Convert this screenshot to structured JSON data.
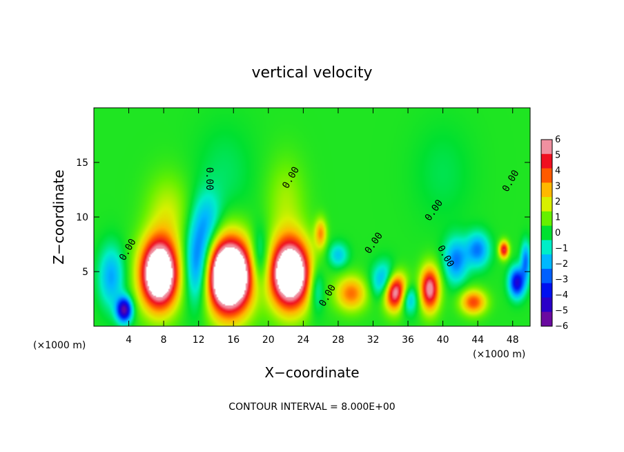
{
  "chart_data": {
    "type": "heatmap",
    "title": "vertical velocity",
    "xlabel": "X−coordinate",
    "ylabel": "Z−coordinate",
    "x_unit_label": "(×1000 m)",
    "footer": "CONTOUR INTERVAL = 8.000E+00",
    "xlim": [
      0,
      50
    ],
    "ylim": [
      0,
      20
    ],
    "x_ticks": [
      4,
      8,
      12,
      16,
      20,
      24,
      28,
      32,
      36,
      40,
      44,
      48
    ],
    "y_ticks": [
      5,
      10,
      15
    ],
    "x_tick_labels": [
      "4",
      "8",
      "12",
      "16",
      "20",
      "24",
      "28",
      "32",
      "36",
      "40",
      "44",
      "48"
    ],
    "y_tick_labels": [
      "5",
      "10",
      "15"
    ],
    "background_value": 0.3,
    "color_scale": {
      "min": -6,
      "max": 6,
      "levels": [
        -6,
        -5,
        -4,
        -3,
        -2,
        -1,
        0,
        1,
        2,
        3,
        4,
        5,
        6
      ],
      "level_labels": [
        "−6",
        "−5",
        "−4",
        "−3",
        "−2",
        "−1",
        "0",
        "1",
        "2",
        "3",
        "4",
        "5",
        "6"
      ],
      "colors": [
        "#6a0aa0",
        "#2a00c8",
        "#0010f0",
        "#0060ff",
        "#00b8ff",
        "#00eec8",
        "#00e030",
        "#66f000",
        "#d8f000",
        "#ffb800",
        "#ff5a00",
        "#f01020",
        "#f090a0"
      ]
    },
    "features": [
      {
        "x": 7.5,
        "z": 4.8,
        "sx": 1.9,
        "sz": 2.8,
        "v": 10
      },
      {
        "x": 15.5,
        "z": 4.6,
        "sx": 2.3,
        "sz": 3.0,
        "v": 12
      },
      {
        "x": 22.5,
        "z": 4.8,
        "sx": 2.0,
        "sz": 2.8,
        "v": 10
      },
      {
        "x": 34.5,
        "z": 3.2,
        "sx": 1.2,
        "sz": 1.5,
        "v": 8
      },
      {
        "x": 38.5,
        "z": 3.4,
        "sx": 1.0,
        "sz": 1.8,
        "v": 6
      },
      {
        "x": 29.5,
        "z": 3.0,
        "sx": 1.6,
        "sz": 1.4,
        "v": 3.5
      },
      {
        "x": 43.5,
        "z": 2.2,
        "sx": 1.3,
        "sz": 1.0,
        "v": 4
      },
      {
        "x": 26.0,
        "z": 8.5,
        "sx": 0.6,
        "sz": 1.2,
        "v": 3
      },
      {
        "x": 8.5,
        "z": 10.5,
        "sx": 2.2,
        "sz": 3.0,
        "v": 1.5
      },
      {
        "x": 22.0,
        "z": 11.5,
        "sx": 2.0,
        "sz": 3.5,
        "v": 1.2
      },
      {
        "x": 47.0,
        "z": 7.0,
        "sx": 0.5,
        "sz": 0.7,
        "v": 5
      },
      {
        "x": 3.5,
        "z": 1.5,
        "sx": 0.8,
        "sz": 1.0,
        "v": -6
      },
      {
        "x": 2.0,
        "z": 4.5,
        "sx": 1.3,
        "sz": 2.5,
        "v": -2.5
      },
      {
        "x": 12.0,
        "z": 5.5,
        "sx": 1.4,
        "sz": 3.2,
        "v": -4
      },
      {
        "x": 13.0,
        "z": 9.5,
        "sx": 1.5,
        "sz": 2.5,
        "v": -2
      },
      {
        "x": 19.0,
        "z": 6.0,
        "sx": 1.0,
        "sz": 2.5,
        "v": -2.5
      },
      {
        "x": 25.5,
        "z": 3.5,
        "sx": 0.8,
        "sz": 2.0,
        "v": -2
      },
      {
        "x": 33.5,
        "z": 4.0,
        "sx": 1.3,
        "sz": 1.5,
        "v": -4
      },
      {
        "x": 36.0,
        "z": 2.5,
        "sx": 1.0,
        "sz": 1.2,
        "v": -3
      },
      {
        "x": 41.5,
        "z": 6.0,
        "sx": 1.2,
        "sz": 1.8,
        "v": -3
      },
      {
        "x": 44.0,
        "z": 7.0,
        "sx": 1.2,
        "sz": 1.4,
        "v": -3
      },
      {
        "x": 48.5,
        "z": 4.0,
        "sx": 0.8,
        "sz": 1.2,
        "v": -5
      },
      {
        "x": 49.5,
        "z": 6.0,
        "sx": 0.5,
        "sz": 1.5,
        "v": -3
      },
      {
        "x": 28.0,
        "z": 6.5,
        "sx": 1.0,
        "sz": 1.0,
        "v": -2
      },
      {
        "x": 15.0,
        "z": 14.0,
        "sx": 3.0,
        "sz": 4.0,
        "v": -0.6
      },
      {
        "x": 40.0,
        "z": 14.0,
        "sx": 3.0,
        "sz": 4.0,
        "v": -0.5
      }
    ],
    "contour_labels": [
      {
        "text": "0.00",
        "x": 3.9,
        "z": 7.0,
        "angle": -60
      },
      {
        "text": "0.00",
        "x": 13.2,
        "z": 13.5,
        "angle": 90
      },
      {
        "text": "0.00",
        "x": 22.6,
        "z": 13.6,
        "angle": -60
      },
      {
        "text": "0.00",
        "x": 26.8,
        "z": 2.8,
        "angle": -60
      },
      {
        "text": "0.00",
        "x": 32.1,
        "z": 7.6,
        "angle": -55
      },
      {
        "text": "0.00",
        "x": 39.0,
        "z": 10.6,
        "angle": -55
      },
      {
        "text": "0.00",
        "x": 40.3,
        "z": 6.4,
        "angle": 60
      },
      {
        "text": "0.00",
        "x": 47.8,
        "z": 13.3,
        "angle": -60
      }
    ]
  }
}
